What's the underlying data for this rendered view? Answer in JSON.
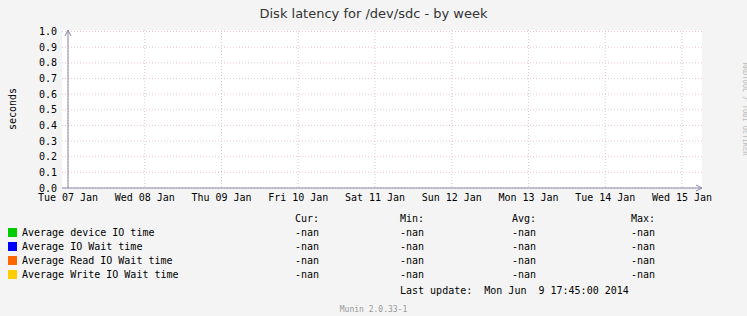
{
  "chart_data": {
    "type": "line",
    "title": "Disk latency for /dev/sdc - by week",
    "ylabel": "seconds",
    "categories": [
      "Tue 07 Jan",
      "Wed 08 Jan",
      "Thu 09 Jan",
      "Fri 10 Jan",
      "Sat 11 Jan",
      "Sun 12 Jan",
      "Mon 13 Jan",
      "Tue 14 Jan",
      "Wed 15 Jan"
    ],
    "series": [
      {
        "name": "Average device IO time",
        "color": "#00cc00",
        "values": [
          null,
          null,
          null,
          null,
          null,
          null,
          null,
          null,
          null
        ],
        "stats": [
          "-nan",
          "-nan",
          "-nan",
          "-nan"
        ]
      },
      {
        "name": "Average IO Wait time",
        "color": "#0000ff",
        "values": [
          null,
          null,
          null,
          null,
          null,
          null,
          null,
          null,
          null
        ],
        "stats": [
          "-nan",
          "-nan",
          "-nan",
          "-nan"
        ]
      },
      {
        "name": "Average Read IO Wait time",
        "color": "#ff6600",
        "values": [
          null,
          null,
          null,
          null,
          null,
          null,
          null,
          null,
          null
        ],
        "stats": [
          "-nan",
          "-nan",
          "-nan",
          "-nan"
        ]
      },
      {
        "name": "Average Write IO Wait time",
        "color": "#ffcc00",
        "values": [
          null,
          null,
          null,
          null,
          null,
          null,
          null,
          null,
          null
        ],
        "stats": [
          "-nan",
          "-nan",
          "-nan",
          "-nan"
        ]
      }
    ],
    "stat_headers": [
      "Cur:",
      "Min:",
      "Avg:",
      "Max:"
    ],
    "ylim": [
      0.0,
      1.01
    ],
    "yticks": [
      {
        "value": 0.0,
        "label": "0.0"
      },
      0.1,
      0.2,
      0.3,
      0.4,
      0.5,
      0.6,
      0.7,
      0.8,
      0.9,
      {
        "value": 1.0,
        "label": "1.0"
      }
    ],
    "grid": true,
    "legend": "bottom",
    "annotations": [
      "Last update:  Mon Jun  9 17:45:00 2014",
      "Munin 2.0.33-1",
      "RRDTOOL / TOBI OETIKER"
    ]
  }
}
